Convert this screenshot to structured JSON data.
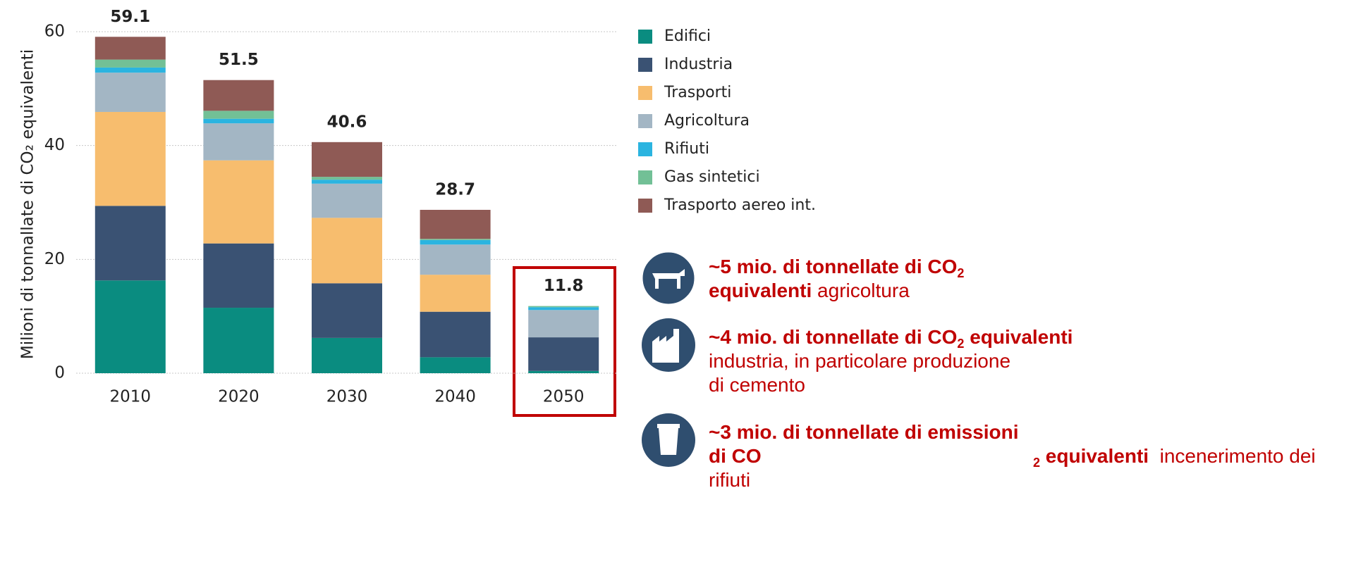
{
  "chart_data": {
    "type": "stacked_bar",
    "y_label": "Milioni di tonnallate di CO₂ equivalenti",
    "categories": [
      "2010",
      "2020",
      "2030",
      "2040",
      "2050"
    ],
    "series": [
      {
        "name": "Edifici",
        "color": "#0a8c80",
        "values": [
          16.3,
          11.5,
          6.2,
          2.8,
          0.4
        ]
      },
      {
        "name": "Industria",
        "color": "#3a5273",
        "values": [
          13.1,
          11.3,
          9.6,
          8.0,
          5.9
        ]
      },
      {
        "name": "Trasporti",
        "color": "#f7bd6e",
        "values": [
          16.5,
          14.6,
          11.5,
          6.5,
          0
        ]
      },
      {
        "name": "Agricoltura",
        "color": "#a3b6c4",
        "values": [
          6.9,
          6.5,
          6.0,
          5.3,
          4.8
        ]
      },
      {
        "name": "Rifiuti",
        "color": "#2bb4e0",
        "values": [
          0.9,
          0.8,
          0.7,
          0.8,
          0.5
        ]
      },
      {
        "name": "Gas sintetici",
        "color": "#72c096",
        "values": [
          1.4,
          1.4,
          0.5,
          0.2,
          0.2
        ]
      },
      {
        "name": "Trasporto aereo int.",
        "color": "#8f5a55",
        "values": [
          4.0,
          5.4,
          6.1,
          5.1,
          0
        ]
      }
    ],
    "totals": [
      59.1,
      51.5,
      40.6,
      28.7,
      11.8
    ],
    "ylim": [
      0,
      60
    ],
    "yticks": [
      0,
      20,
      40,
      60
    ],
    "grid": true
  },
  "annotations": [
    {
      "bold": "~5 mio. di tonnellate di CO",
      "sub": "2",
      "bold2": "equivalenti",
      "text": "agricoltura"
    },
    {
      "bold": "~4 mio. di tonnellate di CO",
      "sub": "2",
      "bold2": "equivalenti",
      "text": "industria, in particolare produzione di cemento"
    },
    {
      "bold": "~3 mio. di tonnellate di emissioni di CO",
      "sub": "2",
      "bold2": "equivalenti",
      "text": "incenerimento dei rifiuti"
    }
  ]
}
